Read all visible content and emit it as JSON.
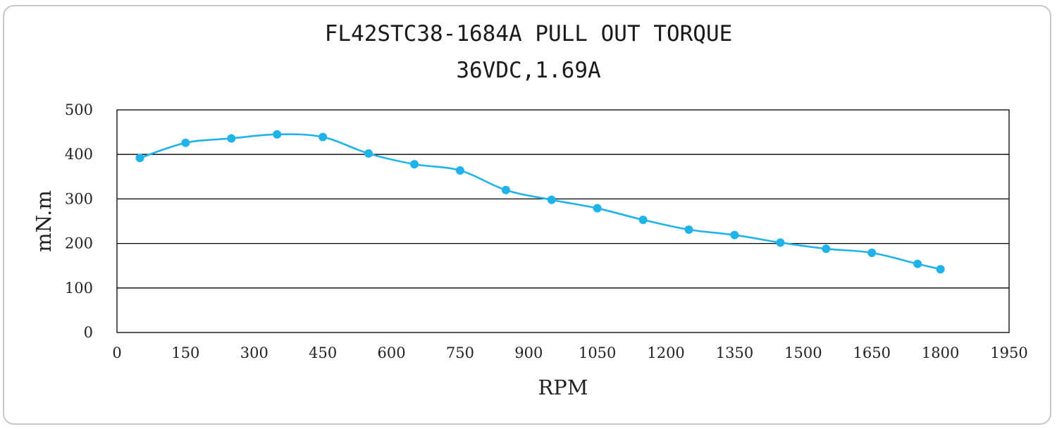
{
  "chart_data": {
    "type": "line",
    "title": "FL42STC38-1684A PULL OUT TORQUE",
    "subtitle": "36VDC,1.69A",
    "xlabel": "RPM",
    "ylabel": "mN.m",
    "xlim": [
      0,
      1950
    ],
    "ylim": [
      0,
      500
    ],
    "xticks": [
      0,
      150,
      300,
      450,
      600,
      750,
      900,
      1050,
      1200,
      1350,
      1500,
      1650,
      1800,
      1950
    ],
    "yticks": [
      0,
      100,
      200,
      300,
      400,
      500
    ],
    "grid": true,
    "series": [
      {
        "color": "#1fb3ea",
        "points": [
          {
            "x": 50,
            "y": 392
          },
          {
            "x": 150,
            "y": 426
          },
          {
            "x": 250,
            "y": 436
          },
          {
            "x": 350,
            "y": 445
          },
          {
            "x": 450,
            "y": 439
          },
          {
            "x": 550,
            "y": 402
          },
          {
            "x": 650,
            "y": 378
          },
          {
            "x": 750,
            "y": 364
          },
          {
            "x": 850,
            "y": 320
          },
          {
            "x": 950,
            "y": 298
          },
          {
            "x": 1050,
            "y": 279
          },
          {
            "x": 1150,
            "y": 253
          },
          {
            "x": 1250,
            "y": 231
          },
          {
            "x": 1350,
            "y": 219
          },
          {
            "x": 1450,
            "y": 202
          },
          {
            "x": 1550,
            "y": 188
          },
          {
            "x": 1650,
            "y": 179
          },
          {
            "x": 1750,
            "y": 154
          },
          {
            "x": 1800,
            "y": 142
          }
        ]
      }
    ]
  }
}
